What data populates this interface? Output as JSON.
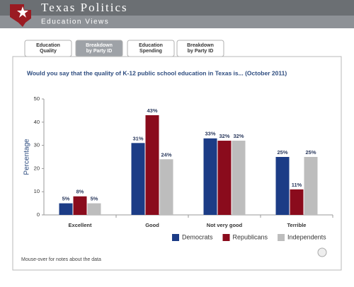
{
  "header": {
    "title": "Texas Politics",
    "subtitle": "Education Views"
  },
  "tabs": [
    [
      "Education",
      "Quality"
    ],
    [
      "Breakdown",
      "by Party ID"
    ],
    [
      "Education",
      "Spending"
    ],
    [
      "Breakdown",
      "by Party ID"
    ]
  ],
  "chart_data": {
    "type": "bar",
    "title": "Would you say that the quality of K-12 public school education in Texas is... (October 2011)",
    "y_label": "Percentage",
    "categories": [
      "Excellent",
      "Good",
      "Not very good",
      "Terrible"
    ],
    "series": [
      {
        "name": "Democrats",
        "color": "#1c3c86",
        "values": [
          5,
          31,
          33,
          25
        ],
        "value_labels": [
          "5%",
          "31%",
          "33%",
          "25%"
        ]
      },
      {
        "name": "Republicans",
        "color": "#8a0b1c",
        "values": [
          8,
          43,
          32,
          11
        ],
        "value_labels": [
          "8%",
          "43%",
          "32%",
          "11%"
        ]
      },
      {
        "name": "Independents",
        "color": "#bdbdbd",
        "values": [
          5,
          24,
          32,
          25
        ],
        "value_labels": [
          "5%",
          "24%",
          "32%",
          "25%"
        ]
      }
    ],
    "ylim": [
      0,
      50
    ],
    "yticks": [
      0,
      10,
      20,
      30,
      40,
      50
    ],
    "grid": false,
    "legend": "bottom-right"
  },
  "footer": {
    "note": "Mouse-over for notes about the data"
  }
}
